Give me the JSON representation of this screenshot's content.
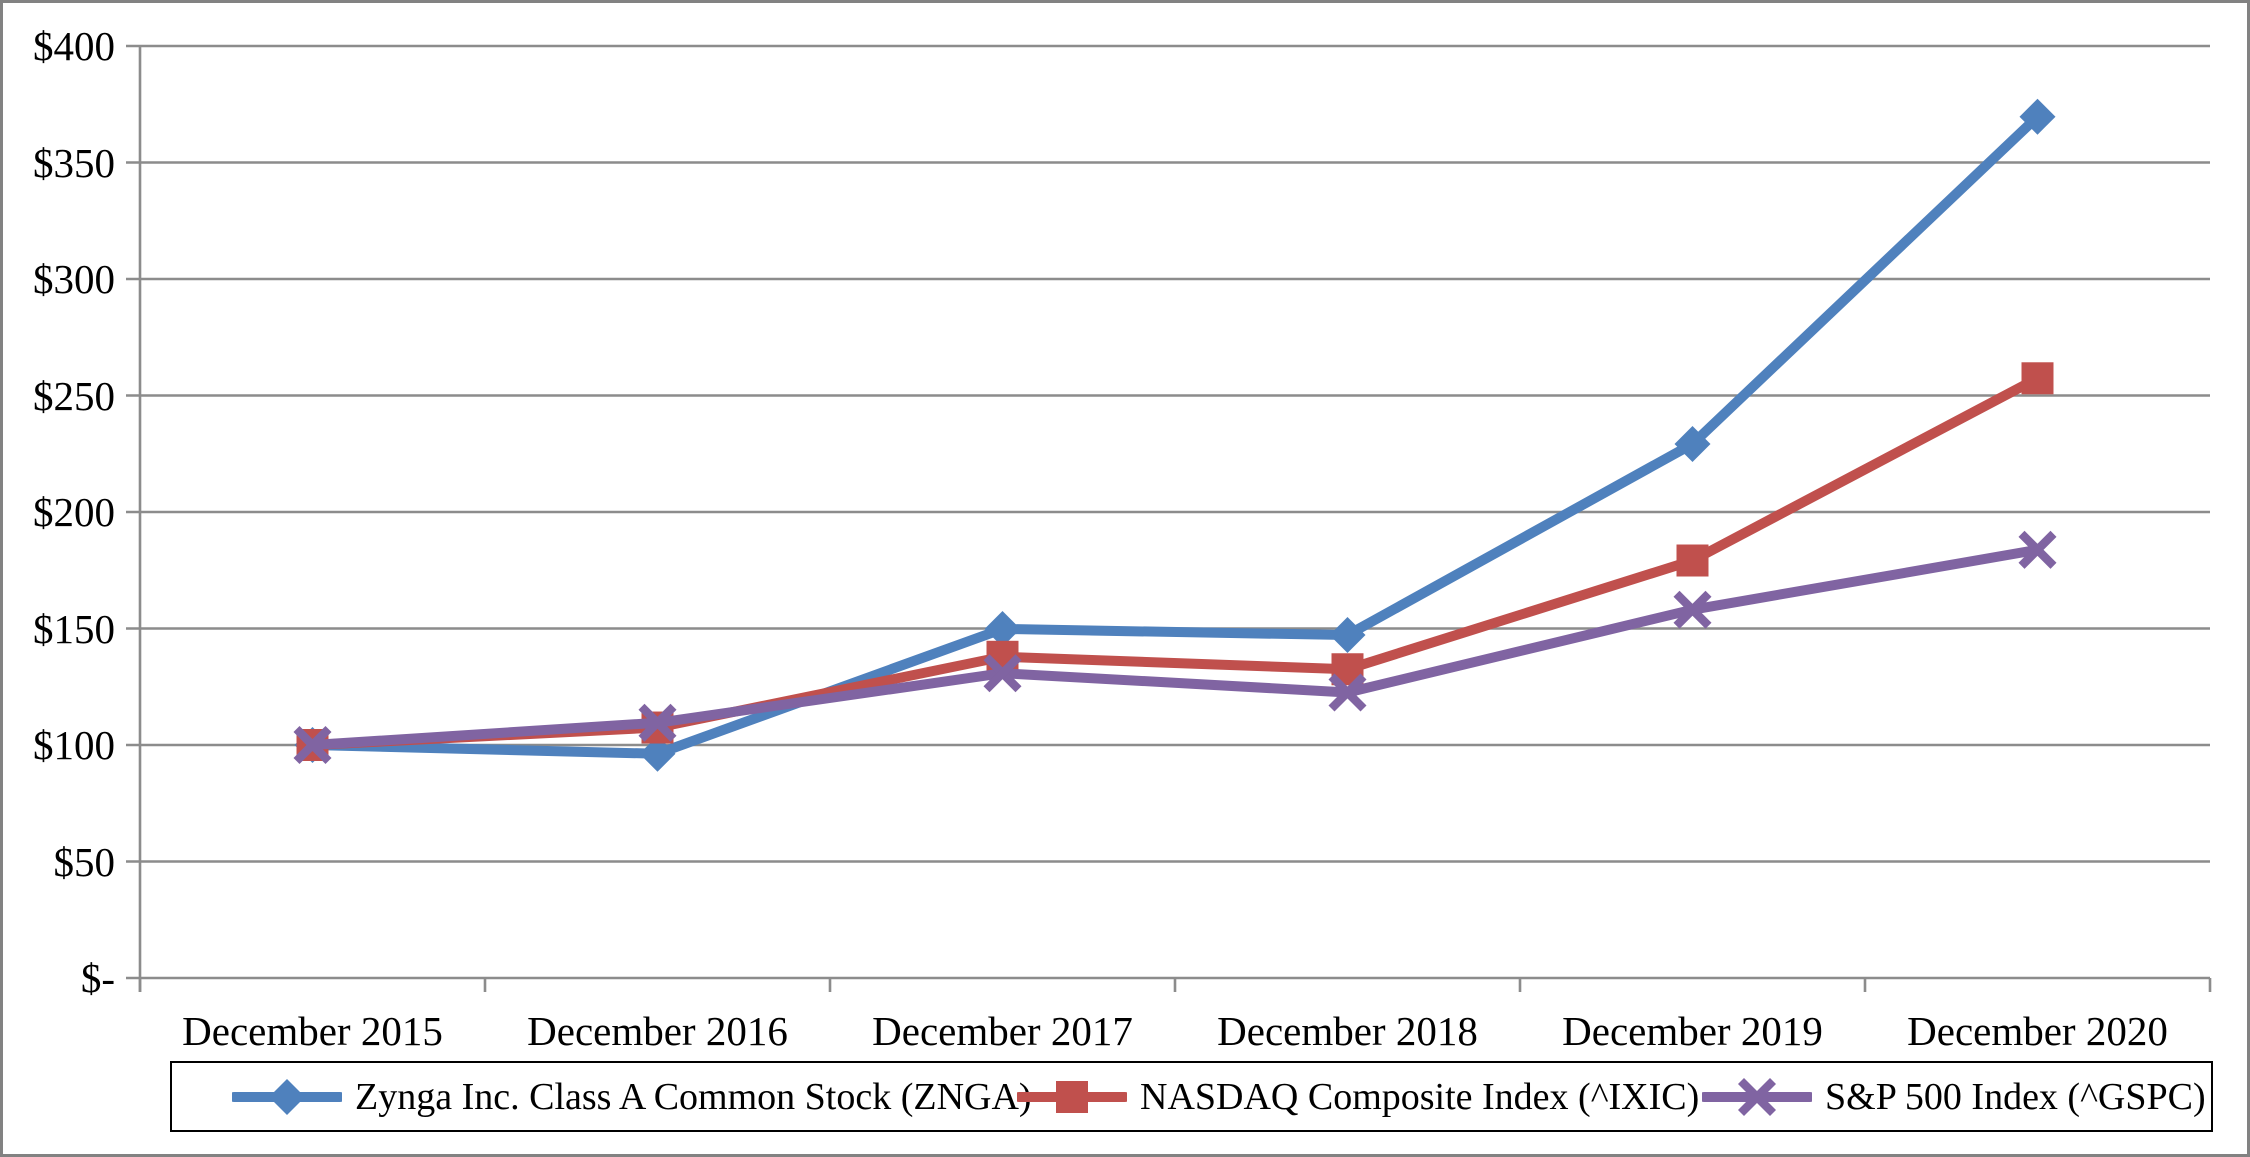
{
  "chart_data": {
    "type": "line",
    "title": "",
    "categories": [
      "December 2015",
      "December 2016",
      "December 2017",
      "December 2018",
      "December 2019",
      "December 2020"
    ],
    "series": [
      {
        "name": "Zynga Inc. Class A Common Stock (ZNGA)",
        "marker": "diamond",
        "color": "#4F81BD",
        "values": [
          100.0,
          96.25,
          149.81,
          147.19,
          229.21,
          369.66
        ]
      },
      {
        "name": "NASDAQ Composite Index (^IXIC)",
        "marker": "square",
        "color": "#C0504D",
        "values": [
          100.0,
          107.5,
          137.86,
          132.51,
          179.18,
          257.39
        ]
      },
      {
        "name": "S&P 500 Index (^GSPC)",
        "marker": "x",
        "color": "#8064A2",
        "values": [
          100.0,
          109.54,
          130.81,
          122.55,
          158.07,
          183.77
        ]
      }
    ],
    "y_axis": {
      "min": 0,
      "max": 400,
      "step": 50,
      "tick_labels_top_to_bottom": [
        "$400",
        "$350",
        "$300",
        "$250",
        "$200",
        "$150",
        "$100",
        "$50",
        "$-"
      ]
    },
    "x_axis": {
      "tick_labels": [
        "December 2015",
        "December 2016",
        "December 2017",
        "December 2018",
        "December 2019",
        "December 2020"
      ]
    },
    "grid": true,
    "legend_position": "bottom",
    "colors": {
      "gridline": "#8C8C8C",
      "axis": "#8C8C8C",
      "frame_border": "#828282",
      "legend_border": "#000000",
      "text": "#000000",
      "background": "#FFFFFF"
    }
  }
}
